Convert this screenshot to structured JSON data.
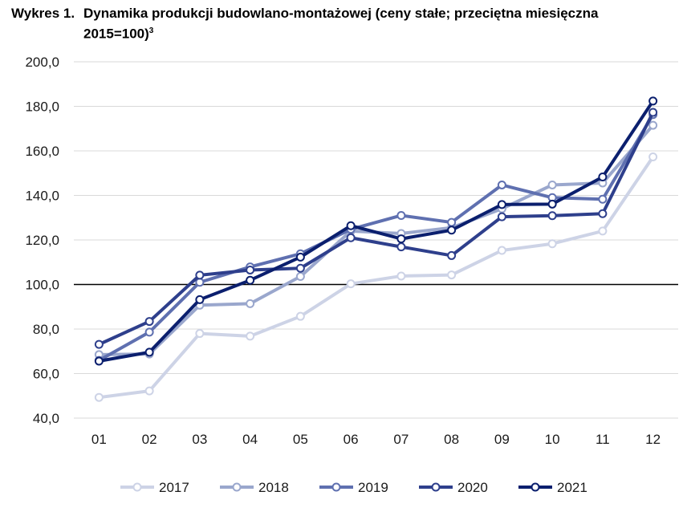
{
  "header": {
    "label": "Wykres 1.",
    "title": "Dynamika produkcji budowlano-montażowej (ceny stałe; przeciętna miesięczna 2015=100)",
    "footnote": "3"
  },
  "chart_data": {
    "type": "line",
    "title": "Dynamika produkcji budowlano-montażowej (ceny stałe; przeciętna miesięczna 2015=100)",
    "xlabel": "",
    "ylabel": "",
    "categories": [
      "01",
      "02",
      "03",
      "04",
      "05",
      "06",
      "07",
      "08",
      "09",
      "10",
      "11",
      "12"
    ],
    "y_ticks": [
      "40,0",
      "60,0",
      "80,0",
      "100,0",
      "120,0",
      "140,0",
      "160,0",
      "180,0",
      "200,0"
    ],
    "ylim": [
      40,
      200
    ],
    "reference_line": 100,
    "grid": true,
    "legend_position": "bottom",
    "series": [
      {
        "name": "2017",
        "color": "#cdd3e6",
        "values": [
          49.3,
          52.2,
          78.0,
          76.8,
          85.7,
          100.3,
          103.8,
          104.3,
          115.3,
          118.3,
          124.0,
          157.3
        ]
      },
      {
        "name": "2018",
        "color": "#9aa7cd",
        "values": [
          68.5,
          68.8,
          90.7,
          91.4,
          103.6,
          124.0,
          122.9,
          125.5,
          134.0,
          144.7,
          145.6,
          171.5
        ]
      },
      {
        "name": "2019",
        "color": "#5f70b0",
        "values": [
          65.9,
          78.6,
          101.0,
          107.9,
          113.8,
          124.8,
          131.0,
          127.9,
          144.7,
          139.0,
          138.3,
          176.3
        ]
      },
      {
        "name": "2020",
        "color": "#2e3f8c",
        "values": [
          73.1,
          83.4,
          104.2,
          106.5,
          107.3,
          121.0,
          116.9,
          113.0,
          130.4,
          130.9,
          131.8,
          177.3
        ]
      },
      {
        "name": "2021",
        "color": "#0b1f6e",
        "values": [
          65.6,
          69.6,
          93.2,
          101.9,
          112.3,
          126.4,
          120.5,
          124.4,
          135.9,
          136.1,
          148.3,
          182.4
        ]
      }
    ]
  }
}
